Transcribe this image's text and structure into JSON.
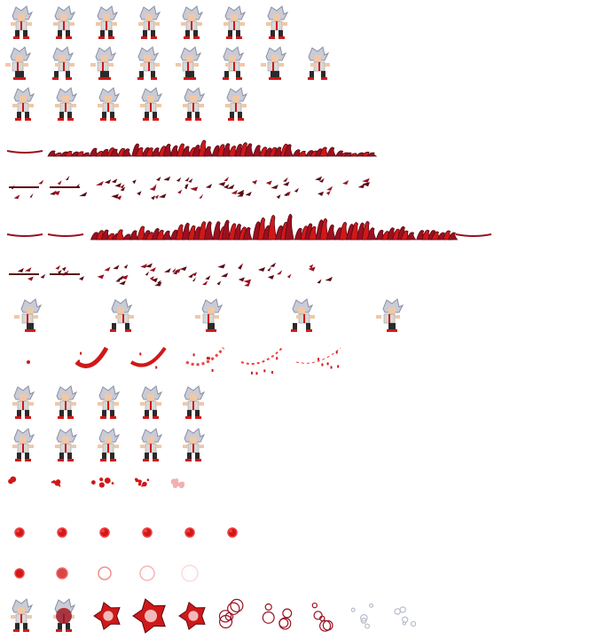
{
  "sheet": {
    "background": "#ffffff",
    "palette": {
      "hair": "#c9ccd6",
      "hair_shade": "#8a8fa3",
      "skin": "#f0c8a8",
      "shirt": "#d8d8d8",
      "pants": "#2a2a2a",
      "shoe": "#d01818",
      "blood_dark": "#5a0a14",
      "blood_mid": "#9a1020",
      "blood": "#d01818",
      "blood_light": "#f04040"
    },
    "rows": [
      {
        "kind": "character",
        "pose": "idle",
        "frames": 7
      },
      {
        "kind": "character",
        "pose": "run",
        "frames": 8
      },
      {
        "kind": "character",
        "pose": "jump",
        "frames": 6
      },
      {
        "kind": "blood-wave",
        "variant": "dense",
        "frames": 9
      },
      {
        "kind": "blood-burst",
        "variant": "shards",
        "frames": 9
      },
      {
        "kind": "blood-wave",
        "variant": "tall",
        "frames": 12
      },
      {
        "kind": "blood-burst",
        "variant": "fragments",
        "frames": 8
      },
      {
        "kind": "character",
        "pose": "slash",
        "frames": 5
      },
      {
        "kind": "blood-arc",
        "variant": "slash-trail",
        "frames": 6
      },
      {
        "kind": "character",
        "pose": "cast",
        "frames": 5
      },
      {
        "kind": "character",
        "pose": "cast-alt",
        "frames": 5
      },
      {
        "kind": "projectile",
        "variant": "spray",
        "frames": 5
      },
      {
        "kind": "orb",
        "variant": "flicker",
        "frames": 6
      },
      {
        "kind": "orb",
        "variant": "fade",
        "frames": 5
      },
      {
        "kind": "explosion",
        "variant": "blood-burst",
        "frames": 10
      }
    ]
  }
}
